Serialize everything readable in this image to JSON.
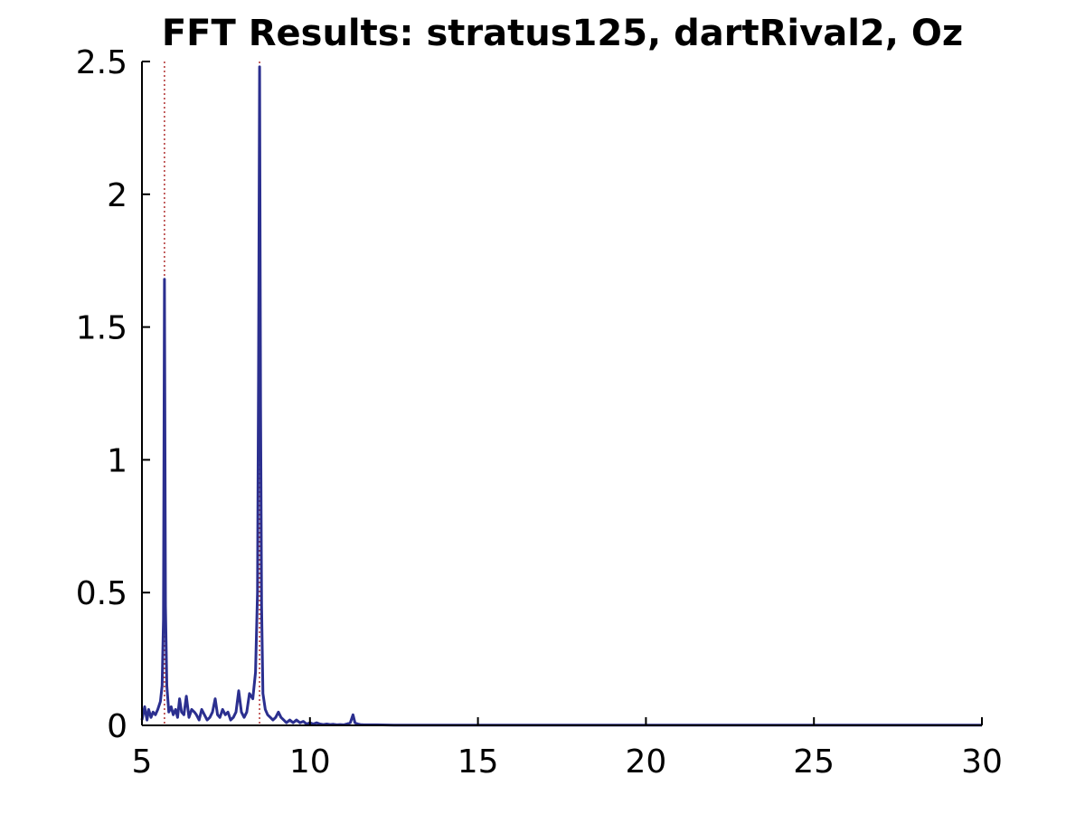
{
  "chart_data": {
    "type": "line",
    "title": "FFT Results: stratus125, dartRival2, Oz",
    "xlabel": "",
    "ylabel": "",
    "xlim": [
      5,
      30
    ],
    "ylim": [
      0,
      2.5
    ],
    "grid": false,
    "x_ticks": [
      5,
      10,
      15,
      20,
      25,
      30
    ],
    "y_ticks": [
      0,
      0.5,
      1,
      1.5,
      2,
      2.5
    ],
    "x_tick_labels": [
      "5",
      "10",
      "15",
      "20",
      "25",
      "30"
    ],
    "y_tick_labels": [
      "0",
      "0.5",
      "1",
      "1.5",
      "2",
      "2.5"
    ],
    "marker_lines_x": [
      5.67,
      8.5
    ],
    "colors": {
      "series": "#2b2f8f",
      "markers": "#b03030"
    },
    "series": [
      {
        "x": [
          5.0,
          5.08,
          5.15,
          5.2,
          5.27,
          5.33,
          5.4,
          5.47,
          5.55,
          5.6,
          5.64,
          5.67,
          5.7,
          5.74,
          5.8,
          5.87,
          5.93,
          6.0,
          6.06,
          6.12,
          6.18,
          6.25,
          6.32,
          6.4,
          6.48,
          6.56,
          6.62,
          6.7,
          6.78,
          6.86,
          6.94,
          7.02,
          7.1,
          7.18,
          7.25,
          7.32,
          7.4,
          7.48,
          7.56,
          7.64,
          7.72,
          7.8,
          7.88,
          7.96,
          8.04,
          8.12,
          8.2,
          8.3,
          8.38,
          8.44,
          8.47,
          8.5,
          8.53,
          8.56,
          8.6,
          8.67,
          8.74,
          8.82,
          8.9,
          8.98,
          9.06,
          9.14,
          9.22,
          9.3,
          9.4,
          9.5,
          9.6,
          9.7,
          9.8,
          9.9,
          10.0,
          10.1,
          10.2,
          10.3,
          10.4,
          10.5,
          10.6,
          10.7,
          10.8,
          10.9,
          11.0,
          11.1,
          11.2,
          11.28,
          11.34,
          11.42,
          11.5,
          11.6,
          11.8,
          12.0,
          12.5,
          13,
          14,
          15,
          16,
          18,
          20,
          22,
          24,
          26,
          28,
          30
        ],
        "y": [
          0.02,
          0.07,
          0.02,
          0.06,
          0.03,
          0.05,
          0.04,
          0.06,
          0.09,
          0.15,
          0.4,
          1.68,
          0.45,
          0.15,
          0.05,
          0.07,
          0.04,
          0.06,
          0.03,
          0.1,
          0.05,
          0.04,
          0.11,
          0.03,
          0.06,
          0.05,
          0.04,
          0.02,
          0.06,
          0.04,
          0.02,
          0.03,
          0.05,
          0.1,
          0.04,
          0.03,
          0.06,
          0.04,
          0.05,
          0.02,
          0.03,
          0.05,
          0.13,
          0.05,
          0.03,
          0.05,
          0.12,
          0.1,
          0.2,
          0.5,
          1.3,
          2.48,
          1.2,
          0.45,
          0.12,
          0.06,
          0.04,
          0.03,
          0.02,
          0.03,
          0.05,
          0.03,
          0.02,
          0.01,
          0.02,
          0.01,
          0.02,
          0.01,
          0.015,
          0.005,
          0.01,
          0.005,
          0.01,
          0.005,
          0.003,
          0.005,
          0.003,
          0.004,
          0.002,
          0.003,
          0.002,
          0.005,
          0.01,
          0.04,
          0.01,
          0.005,
          0.003,
          0.002,
          0.002,
          0.002,
          0.001,
          0.001,
          0.001,
          0.001,
          0.001,
          0.001,
          0.001,
          0.001,
          0.001,
          0.001,
          0.001,
          0.001
        ]
      }
    ]
  }
}
